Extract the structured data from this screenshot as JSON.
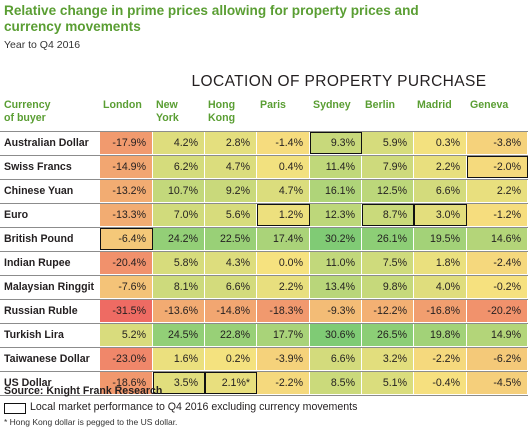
{
  "title": "Relative change in prime prices allowing for property prices and currency movements",
  "subtitle": "Year to Q4 2016",
  "chart_data": {
    "type": "table",
    "column_group_title": "LOCATION OF PROPERTY PURCHASE",
    "row_header": "Currency of buyer",
    "columns": [
      "London",
      "New York",
      "Hong Kong",
      "Paris",
      "Sydney",
      "Berlin",
      "Madrid",
      "Geneva"
    ],
    "rows": [
      {
        "label": "Australian Dollar",
        "values": [
          "-17.9%",
          "4.2%",
          "2.8%",
          "-1.4%",
          "9.3%",
          "5.9%",
          "0.3%",
          "-3.8%"
        ],
        "boxed_column": 4
      },
      {
        "label": "Swiss Francs",
        "values": [
          "-14.9%",
          "6.2%",
          "4.7%",
          "0.4%",
          "11.4%",
          "7.9%",
          "2.2%",
          "-2.0%"
        ],
        "boxed_column": 7
      },
      {
        "label": "Chinese Yuan",
        "values": [
          "-13.2%",
          "10.7%",
          "9.2%",
          "4.7%",
          "16.1%",
          "12.5%",
          "6.6%",
          "2.2%"
        ],
        "boxed_column": null
      },
      {
        "label": "Euro",
        "values": [
          "-13.3%",
          "7.0%",
          "5.6%",
          "1.2%",
          "12.3%",
          "8.7%",
          "3.0%",
          "-1.2%"
        ],
        "boxed_columns": [
          3,
          5,
          6
        ]
      },
      {
        "label": "British Pound",
        "values": [
          "-6.4%",
          "24.2%",
          "22.5%",
          "17.4%",
          "30.2%",
          "26.1%",
          "19.5%",
          "14.6%"
        ],
        "boxed_column": 0
      },
      {
        "label": "Indian Rupee",
        "values": [
          "-20.4%",
          "5.8%",
          "4.3%",
          "0.0%",
          "11.0%",
          "7.5%",
          "1.8%",
          "-2.4%"
        ],
        "boxed_column": null
      },
      {
        "label": "Malaysian Ringgit",
        "values": [
          "-7.6%",
          "8.1%",
          "6.6%",
          "2.2%",
          "13.4%",
          "9.8%",
          "4.0%",
          "-0.2%"
        ],
        "boxed_column": null
      },
      {
        "label": "Russian Ruble",
        "values": [
          "-31.5%",
          "-13.6%",
          "-14.8%",
          "-18.3%",
          "-9.3%",
          "-12.2%",
          "-16.8%",
          "-20.2%"
        ],
        "boxed_column": null
      },
      {
        "label": "Turkish Lira",
        "values": [
          "5.2%",
          "24.5%",
          "22.8%",
          "17.7%",
          "30.6%",
          "26.5%",
          "19.8%",
          "14.9%"
        ],
        "boxed_column": null
      },
      {
        "label": "Taiwanese Dollar",
        "values": [
          "-23.0%",
          "1.6%",
          "0.2%",
          "-3.9%",
          "6.6%",
          "3.2%",
          "-2.2%",
          "-6.2%"
        ],
        "boxed_column": null
      },
      {
        "label": "US Dollar",
        "values": [
          "-18.6%",
          "3.5%",
          "2.1%*",
          "-2.2%",
          "8.5%",
          "5.1%",
          "-0.4%",
          "-4.5%"
        ],
        "boxed_columns": [
          1,
          2
        ]
      }
    ],
    "color_scale": {
      "low": "#ee6b63",
      "mid": "#f6e27f",
      "high": "#7fcb75",
      "range": [
        -31.5,
        30.6
      ]
    }
  },
  "source": "Source: Knight Frank Research",
  "legend": "Local market performance to Q4 2016 excluding currency movements",
  "footnote": "* Hong Kong dollar is pegged to the US dollar."
}
